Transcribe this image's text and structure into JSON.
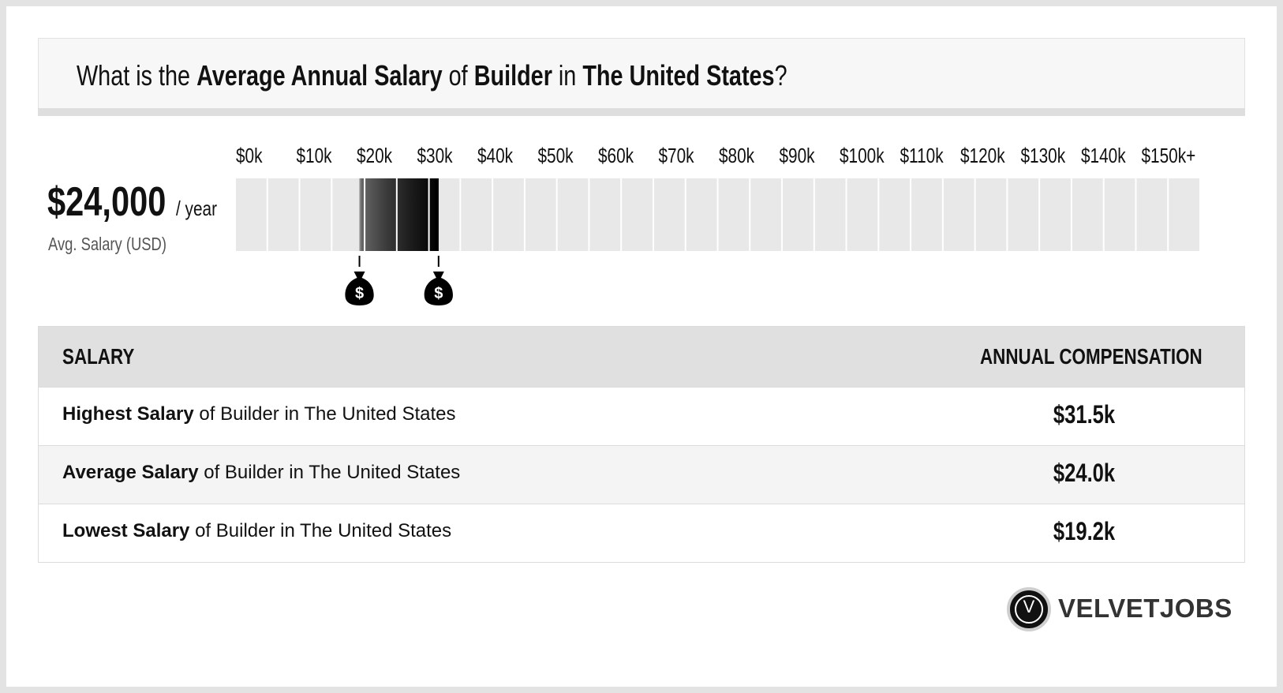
{
  "title": {
    "prefix": "What is the ",
    "metric": "Average Annual Salary",
    "of": " of ",
    "job": "Builder",
    "in": " in ",
    "location": "The United States",
    "suffix": "?"
  },
  "summary": {
    "value": "$24,000",
    "unit": "/ year",
    "label": "Avg. Salary (USD)"
  },
  "chart_data": {
    "type": "range-bar",
    "x_min": 0,
    "x_max": 150,
    "unit": "k USD",
    "tick_labels": [
      "$0k",
      "$10k",
      "$20k",
      "$30k",
      "$40k",
      "$50k",
      "$60k",
      "$70k",
      "$80k",
      "$90k",
      "$100k",
      "$110k",
      "$120k",
      "$130k",
      "$140k",
      "$150k+"
    ],
    "low": 19.2,
    "average": 24.0,
    "high": 31.5,
    "markers": [
      19.2,
      31.5
    ],
    "marker_icon": "money-bag-icon",
    "marker_symbol": "$",
    "colors": {
      "track": "#e8e8e8",
      "low_fill": "#3d3d3d",
      "mid_fill": "#1a1a1a",
      "high_fill": "#000000",
      "marker": "#000000"
    }
  },
  "table": {
    "headers": [
      "SALARY",
      "ANNUAL COMPENSATION"
    ],
    "rows": [
      {
        "bold": "Highest Salary",
        "rest": " of Builder in The United States",
        "value": "$31.5k"
      },
      {
        "bold": "Average Salary",
        "rest": " of Builder in The United States",
        "value": "$24.0k"
      },
      {
        "bold": "Lowest Salary",
        "rest": " of Builder in The United States",
        "value": "$19.2k"
      }
    ]
  },
  "brand": {
    "logo_letter": "V",
    "name": "VELVETJOBS"
  }
}
